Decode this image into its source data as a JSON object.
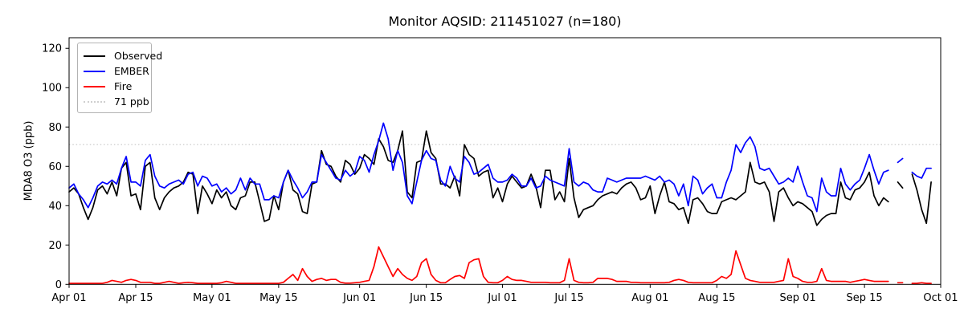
{
  "chart_data": {
    "type": "line",
    "title": "Monitor AQSID: 211451027 (n=180)",
    "ylabel": "MDA8 O3 (ppb)",
    "xlabel": "",
    "ylim": [
      0,
      125
    ],
    "y_ticks": [
      0,
      20,
      40,
      60,
      80,
      100,
      120
    ],
    "x_start_date": "Apr 01",
    "x_end_date": "Oct 01",
    "x_total_days": 183,
    "grid": false,
    "x_ticks": [
      {
        "day": 0,
        "label": "Apr 01"
      },
      {
        "day": 14,
        "label": "Apr 15"
      },
      {
        "day": 30,
        "label": "May 01"
      },
      {
        "day": 44,
        "label": "May 15"
      },
      {
        "day": 61,
        "label": "Jun 01"
      },
      {
        "day": 75,
        "label": "Jun 15"
      },
      {
        "day": 91,
        "label": "Jul 01"
      },
      {
        "day": 105,
        "label": "Jul 15"
      },
      {
        "day": 122,
        "label": "Aug 01"
      },
      {
        "day": 136,
        "label": "Aug 15"
      },
      {
        "day": 153,
        "label": "Sep 01"
      },
      {
        "day": 167,
        "label": "Sep 15"
      },
      {
        "day": 183,
        "label": "Oct 01"
      }
    ],
    "threshold_line": {
      "value": 71,
      "label": "71 ppb",
      "color": "#d4d4d4",
      "style": "dotted"
    },
    "legend": {
      "position": "upper left",
      "entries": [
        {
          "label": "Observed",
          "color": "#000000",
          "style": "solid"
        },
        {
          "label": "EMBER",
          "color": "#0000ff",
          "style": "solid"
        },
        {
          "label": "Fire",
          "color": "#ff0000",
          "style": "solid"
        },
        {
          "label": "71 ppb",
          "color": "#cfcfcf",
          "style": "dotted"
        }
      ]
    },
    "series": [
      {
        "name": "Observed",
        "color": "#000000",
        "daily_values_from_apr01": [
          47,
          49,
          46,
          39,
          33,
          39,
          48,
          50,
          46,
          52,
          45,
          59,
          62,
          45,
          46,
          38,
          60,
          62,
          44,
          38,
          44,
          47,
          49,
          50,
          52,
          57,
          56,
          36,
          50,
          46,
          41,
          48,
          44,
          47,
          40,
          38,
          44,
          45,
          52,
          52,
          42,
          32,
          33,
          45,
          38,
          52,
          58,
          48,
          46,
          37,
          36,
          51,
          52,
          68,
          61,
          60,
          55,
          52,
          63,
          61,
          56,
          59,
          66,
          64,
          61,
          74,
          70,
          63,
          62,
          68,
          78,
          47,
          44,
          62,
          63,
          78,
          67,
          64,
          51,
          51,
          49,
          55,
          45,
          71,
          66,
          64,
          55,
          57,
          58,
          44,
          49,
          42,
          51,
          55,
          52,
          49,
          50,
          56,
          50,
          39,
          58,
          58,
          43,
          47,
          42,
          64,
          44,
          34,
          38,
          39,
          40,
          43,
          45,
          46,
          47,
          46,
          49,
          51,
          52,
          49,
          43,
          44,
          50,
          36,
          45,
          52,
          42,
          41,
          38,
          39,
          31,
          43,
          44,
          41,
          37,
          36,
          36,
          42,
          43,
          44,
          43,
          45,
          47,
          62,
          52,
          51,
          52,
          47,
          32,
          47,
          49,
          44,
          40,
          42,
          41,
          39,
          37,
          30,
          33,
          35,
          36,
          36,
          52,
          44,
          43,
          48,
          49,
          52,
          57,
          45,
          40,
          44,
          42,
          null,
          52,
          49,
          null,
          56,
          48,
          38,
          31,
          52
        ]
      },
      {
        "name": "EMBER",
        "color": "#0000ff",
        "daily_values_from_apr01": [
          49,
          51,
          46,
          43,
          39,
          44,
          50,
          52,
          51,
          53,
          51,
          59,
          65,
          52,
          52,
          50,
          63,
          66,
          55,
          50,
          49,
          51,
          52,
          53,
          51,
          56,
          57,
          50,
          55,
          54,
          50,
          51,
          47,
          49,
          46,
          48,
          54,
          48,
          54,
          51,
          51,
          43,
          43,
          45,
          44,
          52,
          58,
          53,
          49,
          44,
          47,
          52,
          52,
          66,
          62,
          58,
          54,
          53,
          58,
          55,
          57,
          65,
          63,
          57,
          66,
          73,
          82,
          74,
          58,
          68,
          62,
          45,
          41,
          52,
          63,
          68,
          64,
          63,
          53,
          50,
          60,
          54,
          52,
          65,
          62,
          56,
          57,
          59,
          61,
          54,
          52,
          52,
          53,
          56,
          54,
          50,
          50,
          54,
          49,
          50,
          55,
          53,
          52,
          51,
          50,
          69,
          52,
          50,
          52,
          51,
          48,
          47,
          47,
          54,
          53,
          52,
          53,
          54,
          54,
          54,
          54,
          55,
          54,
          53,
          55,
          52,
          53,
          51,
          45,
          51,
          40,
          55,
          53,
          46,
          49,
          51,
          44,
          44,
          52,
          58,
          71,
          67,
          72,
          75,
          70,
          59,
          58,
          59,
          55,
          51,
          52,
          54,
          52,
          60,
          52,
          45,
          44,
          37,
          54,
          47,
          45,
          45,
          59,
          51,
          48,
          51,
          53,
          59,
          66,
          58,
          51,
          57,
          58,
          null,
          62,
          64,
          null,
          57,
          55,
          54,
          59,
          59
        ]
      },
      {
        "name": "Fire",
        "color": "#ff0000",
        "daily_values_from_apr01": [
          0.5,
          0.5,
          0.5,
          0.5,
          0.5,
          0.5,
          0.5,
          0.5,
          1,
          2,
          1.5,
          1,
          2,
          2.5,
          2,
          1,
          1,
          1,
          0.5,
          0.5,
          1,
          1.5,
          1,
          0.5,
          0.8,
          1,
          0.8,
          0.5,
          0.5,
          0.5,
          0.5,
          0.5,
          0.8,
          1.5,
          1,
          0.5,
          0.5,
          0.5,
          0.5,
          0.5,
          0.5,
          0.5,
          0.5,
          0.5,
          0.5,
          1,
          3,
          5,
          2,
          8,
          4,
          1.5,
          2.5,
          3,
          2,
          2.5,
          2.5,
          1,
          0.6,
          0.6,
          0.8,
          1,
          1.5,
          2,
          9,
          19,
          14,
          9,
          4,
          8,
          5,
          3,
          2,
          4,
          11,
          13,
          5,
          2,
          0.8,
          0.8,
          2.5,
          4,
          4.5,
          3,
          11,
          12.5,
          13,
          4,
          1,
          0.8,
          0.8,
          2,
          4,
          2.5,
          2,
          2,
          1.5,
          1,
          1,
          1,
          1,
          0.8,
          0.8,
          0.8,
          2,
          13,
          2,
          1,
          0.8,
          0.8,
          1,
          3,
          3,
          3,
          2.5,
          1.5,
          1.5,
          1.5,
          1,
          1,
          0.8,
          0.8,
          0.8,
          0.8,
          0.8,
          0.8,
          1,
          2,
          2.5,
          2,
          1,
          0.8,
          0.8,
          0.8,
          0.8,
          0.8,
          2,
          4,
          3,
          5,
          17,
          10,
          3,
          2,
          1.5,
          1,
          1,
          1,
          1,
          1.5,
          2,
          13,
          4,
          3,
          1.5,
          1,
          1,
          1.5,
          8,
          2,
          1.5,
          1.5,
          1.5,
          1.5,
          1,
          1.5,
          2,
          2.5,
          2,
          1.5,
          1.5,
          1.5,
          1.5,
          null,
          0.8,
          0.8,
          null,
          0.5,
          0.5,
          0.8,
          0.5,
          0.5
        ]
      }
    ]
  }
}
